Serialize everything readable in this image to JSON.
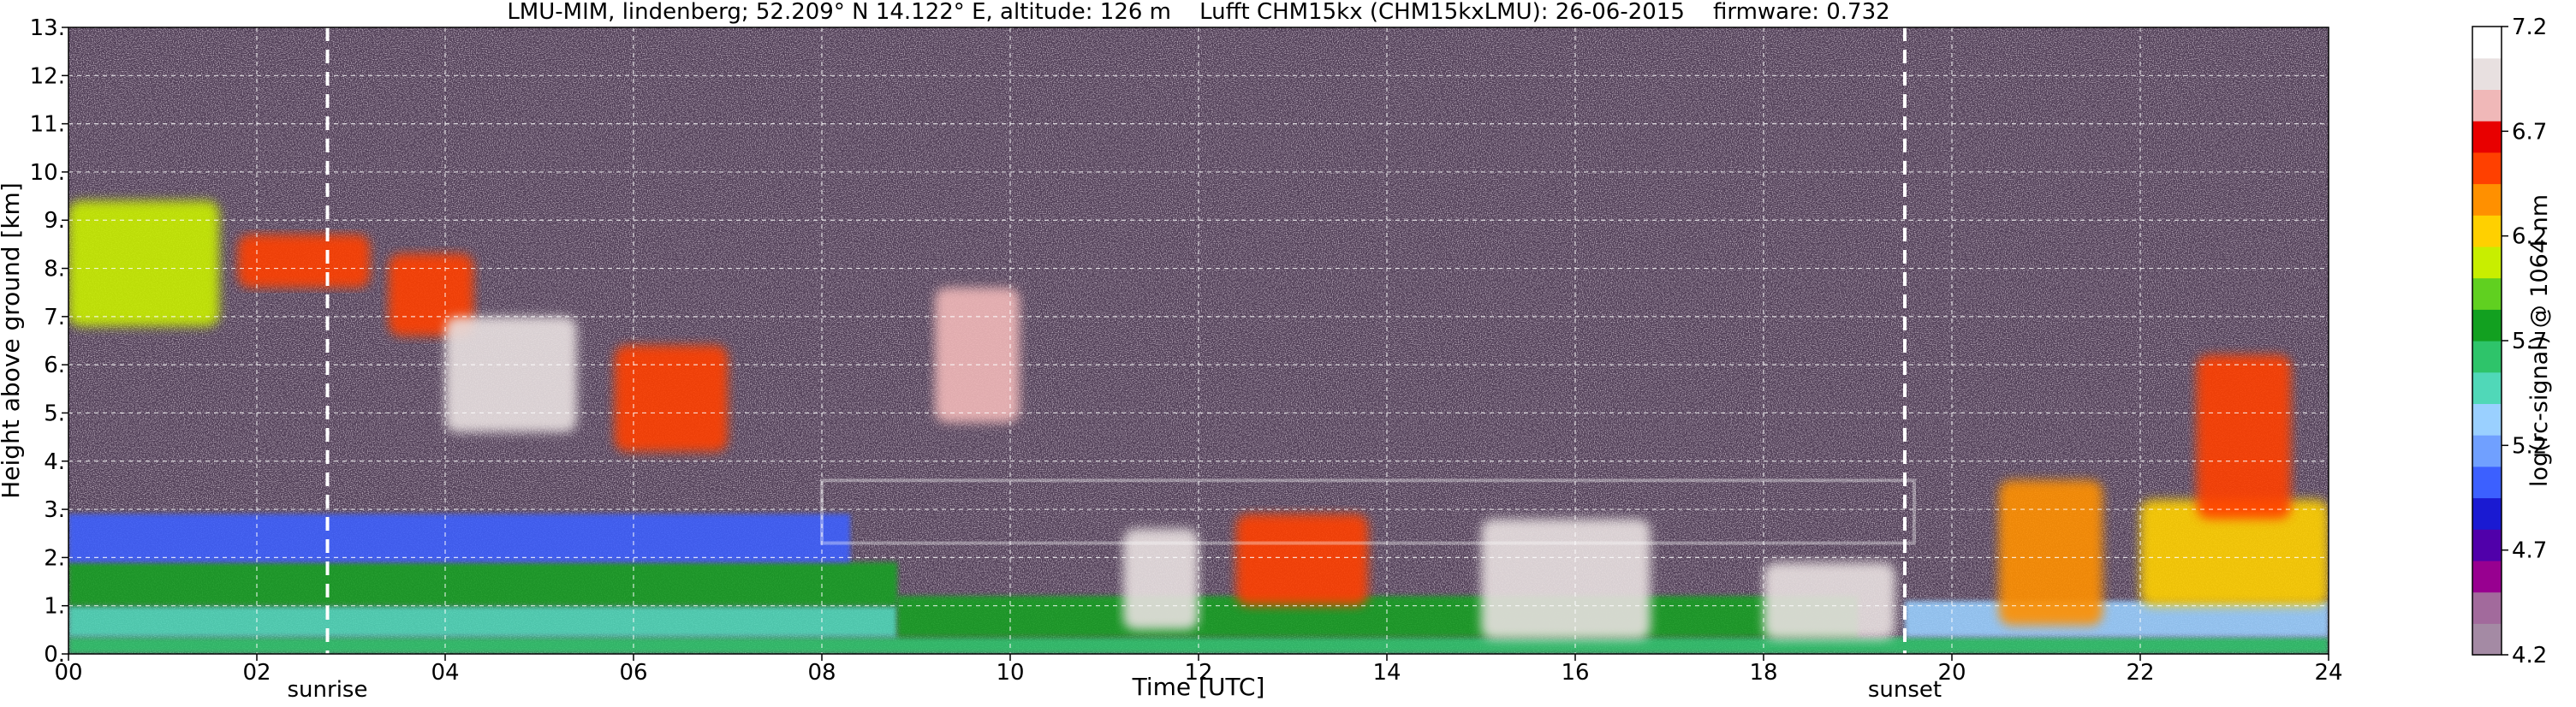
{
  "chart_data": {
    "type": "heatmap",
    "title": "LMU-MIM, lindenberg; 52.209° N 14.122° E, altitude: 126 m    Lufft CHM15kx (CHM15kxLMU): 26-06-2015    firmware: 0.732",
    "xlabel": "Time [UTC]",
    "ylabel": "Height above ground [km]",
    "xlim": [
      0,
      24
    ],
    "ylim": [
      0,
      13
    ],
    "x_ticks": [
      "00",
      "02",
      "04",
      "06",
      "08",
      "10",
      "12",
      "14",
      "16",
      "18",
      "20",
      "22",
      "24"
    ],
    "y_ticks": [
      "0.",
      "1.",
      "2.",
      "3.",
      "4.",
      "5.",
      "6.",
      "7.",
      "8.",
      "9.",
      "10.",
      "11.",
      "12.",
      "13."
    ],
    "grid": true,
    "annotations": [
      {
        "label": "sunrise",
        "time": 2.75
      },
      {
        "label": "sunset",
        "time": 19.5
      }
    ],
    "colorbar": {
      "label": "log(rc-signal) @ 1064 nm",
      "range": [
        4.2,
        7.2
      ],
      "ticks": [
        "4.2",
        "4.7",
        "5.2",
        "5.7",
        "6.2",
        "6.7",
        "7.2"
      ],
      "colors": [
        "#a48aa4",
        "#a26a9c",
        "#980090",
        "#5000aa",
        "#1a1ad2",
        "#3c60ff",
        "#70a0ff",
        "#9ad0ff",
        "#50d8b8",
        "#2ec46a",
        "#12a020",
        "#60d020",
        "#c8ee00",
        "#ffd000",
        "#ff9000",
        "#ff4000",
        "#e80000",
        "#f0b8b8",
        "#e8e0e0",
        "#ffffff"
      ]
    },
    "features": [
      {
        "type": "layer",
        "x0": 0,
        "x1": 24,
        "y0": 0.0,
        "y1": 0.35,
        "value": 5.6
      },
      {
        "type": "layer",
        "x0": 0,
        "x1": 8.8,
        "y0": 0.35,
        "y1": 1.0,
        "value": 5.5
      },
      {
        "type": "layer",
        "x0": 0,
        "x1": 8.8,
        "y0": 1.0,
        "y1": 1.9,
        "value": 5.8
      },
      {
        "type": "layer",
        "x0": 0,
        "x1": 8.3,
        "y0": 1.9,
        "y1": 2.9,
        "value": 5.1
      },
      {
        "type": "layer",
        "x0": 8.8,
        "x1": 19.0,
        "y0": 0.35,
        "y1": 1.2,
        "value": 5.8
      },
      {
        "type": "layer",
        "x0": 19.5,
        "x1": 24,
        "y0": 0.35,
        "y1": 1.1,
        "value": 5.3
      },
      {
        "type": "cloud",
        "x0": 0.0,
        "x1": 1.6,
        "y0": 6.8,
        "y1": 9.4,
        "value": 6.0
      },
      {
        "type": "cloud",
        "x0": 1.8,
        "x1": 3.2,
        "y0": 7.6,
        "y1": 8.7,
        "value": 6.6
      },
      {
        "type": "cloud",
        "x0": 3.4,
        "x1": 4.3,
        "y0": 6.6,
        "y1": 8.3,
        "value": 6.6
      },
      {
        "type": "cloud",
        "x0": 4.0,
        "x1": 5.4,
        "y0": 4.6,
        "y1": 7.0,
        "value": 6.9
      },
      {
        "type": "cloud",
        "x0": 5.8,
        "x1": 7.0,
        "y0": 4.2,
        "y1": 6.4,
        "value": 6.5
      },
      {
        "type": "cloud",
        "x0": 9.2,
        "x1": 10.1,
        "y0": 4.8,
        "y1": 7.6,
        "value": 6.8
      },
      {
        "type": "cloud",
        "x0": 11.2,
        "x1": 12.0,
        "y0": 0.5,
        "y1": 2.6,
        "value": 7.0
      },
      {
        "type": "cloud",
        "x0": 12.4,
        "x1": 13.8,
        "y0": 1.0,
        "y1": 2.9,
        "value": 6.5
      },
      {
        "type": "cloud",
        "x0": 15.0,
        "x1": 16.8,
        "y0": 0.3,
        "y1": 2.8,
        "value": 6.9
      },
      {
        "type": "cloud",
        "x0": 18.0,
        "x1": 19.4,
        "y0": 0.3,
        "y1": 1.9,
        "value": 6.9
      },
      {
        "type": "cloud",
        "x0": 20.5,
        "x1": 21.6,
        "y0": 0.6,
        "y1": 3.6,
        "value": 6.4
      },
      {
        "type": "cloud",
        "x0": 22.0,
        "x1": 24.0,
        "y0": 1.0,
        "y1": 3.2,
        "value": 6.3
      },
      {
        "type": "cloud",
        "x0": 22.6,
        "x1": 23.6,
        "y0": 2.8,
        "y1": 6.2,
        "value": 6.5
      },
      {
        "type": "boundary",
        "x0": 8.0,
        "x1": 19.6,
        "y0": 2.3,
        "y1": 3.6,
        "value": 7.2
      }
    ]
  }
}
